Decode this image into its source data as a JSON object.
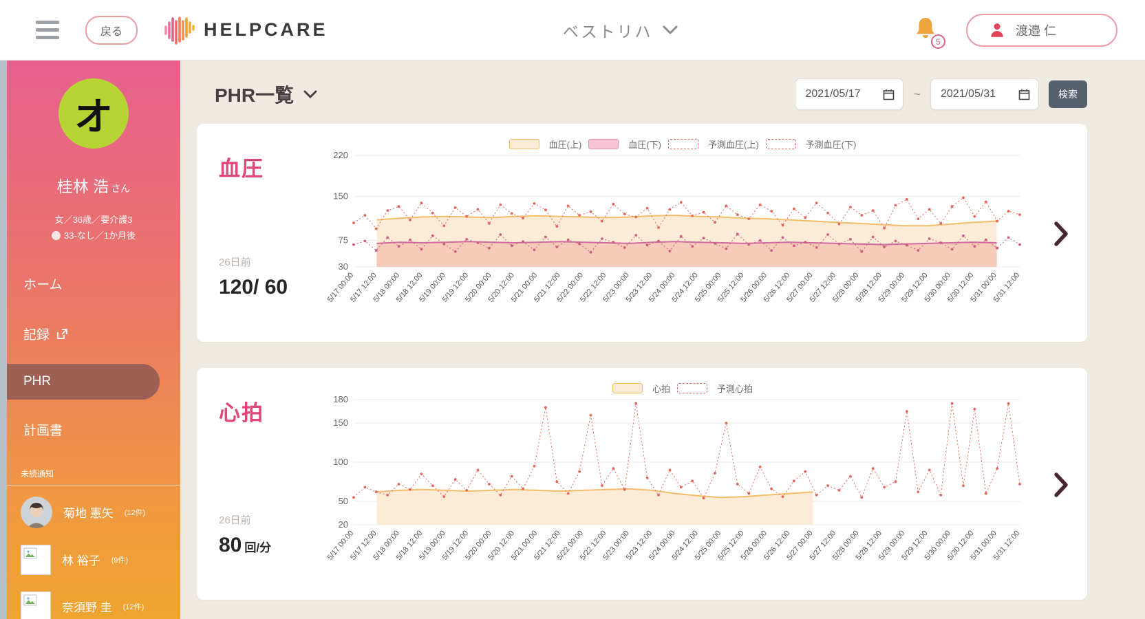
{
  "header": {
    "back_label": "戻る",
    "brand": "HELPCARE",
    "facility": "ベストリハ",
    "notifications_count": "5",
    "user_name": "渡邉 仁"
  },
  "sidebar": {
    "avatar_letter": "オ",
    "patient_name": "桂林 浩",
    "patient_honorific": "さん",
    "patient_meta1": "女／36歳／要介護3",
    "patient_meta2": "33-なし／1か月後",
    "menu": [
      {
        "label": "ホーム"
      },
      {
        "label": "記録"
      },
      {
        "label": "PHR"
      },
      {
        "label": "計画書"
      }
    ],
    "section_label": "未読通知",
    "users": [
      {
        "name": "菊地 憲矢",
        "count": "(12件)"
      },
      {
        "name": "林 裕子",
        "count": "(9件)"
      },
      {
        "name": "奈須野 圭",
        "count": "(12件)"
      }
    ]
  },
  "toolbar": {
    "title": "PHR一覧",
    "date_from": "2021/05/17",
    "date_to": "2021/05/31",
    "range_separator": "~",
    "search_label": "検索"
  },
  "charts": {
    "cards": [
      {
        "title": "血圧",
        "ago": "26日前",
        "value": "120/ 60",
        "unit": ""
      },
      {
        "title": "心拍",
        "ago": "26日前",
        "value": "80",
        "unit": "回/分"
      }
    ]
  },
  "chart_data": [
    {
      "type": "area",
      "title": "血圧",
      "ylim": [
        30,
        220
      ],
      "yticks": [
        30,
        75,
        150,
        220
      ],
      "grid": "horizontal",
      "legend_position": "top-center",
      "x_tick_labels": [
        "5/17 00:00",
        "5/17 12:00",
        "5/18 00:00",
        "5/18 12:00",
        "5/19 00:00",
        "5/19 12:00",
        "5/20 00:00",
        "5/20 12:00",
        "5/21 00:00",
        "5/21 12:00",
        "5/22 00:00",
        "5/22 12:00",
        "5/23 00:00",
        "5/23 12:00",
        "5/24 00:00",
        "5/24 12:00",
        "5/25 00:00",
        "5/25 12:00",
        "5/26 00:00",
        "5/26 12:00",
        "5/27 00:00",
        "5/27 12:00",
        "5/28 00:00",
        "5/28 12:00",
        "5/29 00:00",
        "5/29 12:00",
        "5/30 00:00",
        "5/30 12:00",
        "5/31 00:00",
        "5/31 12:00"
      ],
      "legend": [
        {
          "label": "血圧(上)",
          "swatch": "fill",
          "color": "#fcecd7",
          "border": "#f4bd69"
        },
        {
          "label": "血圧(下)",
          "swatch": "fill",
          "color": "#f5c3d4",
          "border": "#e391b4"
        },
        {
          "label": "予測血圧(上)",
          "swatch": "dashed",
          "color": "#ffffff",
          "border": "#e06a5f"
        },
        {
          "label": "予測血圧(下)",
          "swatch": "dashed",
          "color": "#ffffff",
          "border": "#e06a5f"
        }
      ],
      "series": [
        {
          "name": "血圧(上)",
          "type": "band",
          "stroke": "#f4bd69",
          "fill": "#fcecd7",
          "values": [
            null,
            110,
            113,
            115,
            116,
            115,
            114,
            116,
            117,
            116,
            115,
            114,
            115,
            117,
            118,
            116,
            115,
            113,
            112,
            110,
            108,
            106,
            104,
            102,
            100,
            100,
            103,
            106,
            108,
            null
          ]
        },
        {
          "name": "血圧(下)",
          "type": "band",
          "stroke": "#cf6b9f",
          "fill": "#f6cbb9",
          "values": [
            null,
            70,
            72,
            71,
            72,
            73,
            72,
            71,
            72,
            73,
            72,
            71,
            70,
            72,
            73,
            72,
            71,
            70,
            71,
            72,
            71,
            70,
            69,
            68,
            69,
            70,
            71,
            72,
            71,
            null
          ]
        },
        {
          "name": "予測血圧(上)",
          "type": "dashed-scatter",
          "color": "#e2685c",
          "values": [
            105,
            118,
            95,
            126,
            133,
            110,
            139,
            122,
            100,
            131,
            116,
            128,
            104,
            136,
            121,
            113,
            138,
            127,
            99,
            134,
            118,
            124,
            108,
            137,
            120,
            115,
            130,
            97,
            128,
            140,
            117,
            123,
            106,
            134,
            119,
            112,
            136,
            125,
            101,
            129,
            114,
            139,
            122,
            103,
            132,
            118,
            126,
            96,
            135,
            145,
            112,
            128,
            104,
            133,
            148,
            116,
            141,
            108,
            125,
            119
          ]
        },
        {
          "name": "予測血圧(下)",
          "type": "dashed-scatter",
          "color": "#cb5d80",
          "values": [
            68,
            74,
            58,
            80,
            65,
            76,
            60,
            83,
            69,
            56,
            77,
            71,
            62,
            85,
            66,
            73,
            59,
            81,
            64,
            76,
            69,
            55,
            78,
            72,
            63,
            84,
            67,
            74,
            57,
            82,
            65,
            79,
            70,
            61,
            86,
            68,
            75,
            58,
            80,
            66,
            72,
            63,
            85,
            69,
            77,
            56,
            81,
            64,
            74,
            67,
            58,
            78,
            71,
            60,
            83,
            65,
            76,
            62,
            80,
            68
          ]
        }
      ]
    },
    {
      "type": "area",
      "title": "心拍",
      "ylim": [
        20,
        180
      ],
      "yticks": [
        20,
        50,
        100,
        150,
        180
      ],
      "grid": "horizontal",
      "legend_position": "top-center",
      "x_tick_labels": [
        "5/17 00:00",
        "5/17 12:00",
        "5/18 00:00",
        "5/18 12:00",
        "5/19 00:00",
        "5/19 12:00",
        "5/20 00:00",
        "5/20 12:00",
        "5/21 00:00",
        "5/21 12:00",
        "5/22 00:00",
        "5/22 12:00",
        "5/23 00:00",
        "5/23 12:00",
        "5/24 00:00",
        "5/24 12:00",
        "5/25 00:00",
        "5/25 12:00",
        "5/26 00:00",
        "5/26 12:00",
        "5/27 00:00",
        "5/27 12:00",
        "5/28 00:00",
        "5/28 12:00",
        "5/29 00:00",
        "5/29 12:00",
        "5/30 00:00",
        "5/30 12:00",
        "5/31 00:00",
        "5/31 12:00"
      ],
      "legend": [
        {
          "label": "心拍",
          "swatch": "fill",
          "color": "#fcecd7",
          "border": "#f4bd69"
        },
        {
          "label": "予測心拍",
          "swatch": "dashed",
          "color": "#ffffff",
          "border": "#e06a5f"
        }
      ],
      "series": [
        {
          "name": "心拍",
          "type": "band",
          "stroke": "#f4bd69",
          "fill": "#fcecd7",
          "values": [
            null,
            62,
            64,
            65,
            64,
            63,
            64,
            65,
            64,
            63,
            64,
            65,
            66,
            64,
            60,
            57,
            55,
            56,
            58,
            60,
            62,
            null,
            null,
            null,
            null,
            null,
            null,
            null,
            null,
            null
          ]
        },
        {
          "name": "予測心拍",
          "type": "dashed-scatter",
          "color": "#e2685c",
          "values": [
            55,
            68,
            62,
            58,
            72,
            65,
            85,
            70,
            56,
            78,
            64,
            90,
            72,
            58,
            82,
            66,
            95,
            170,
            75,
            60,
            88,
            160,
            70,
            92,
            65,
            175,
            80,
            58,
            90,
            68,
            76,
            54,
            86,
            150,
            72,
            60,
            94,
            66,
            56,
            76,
            88,
            58,
            70,
            64,
            82,
            55,
            92,
            68,
            75,
            165,
            62,
            90,
            58,
            175,
            70,
            168,
            60,
            92,
            175,
            72
          ]
        }
      ]
    }
  ]
}
